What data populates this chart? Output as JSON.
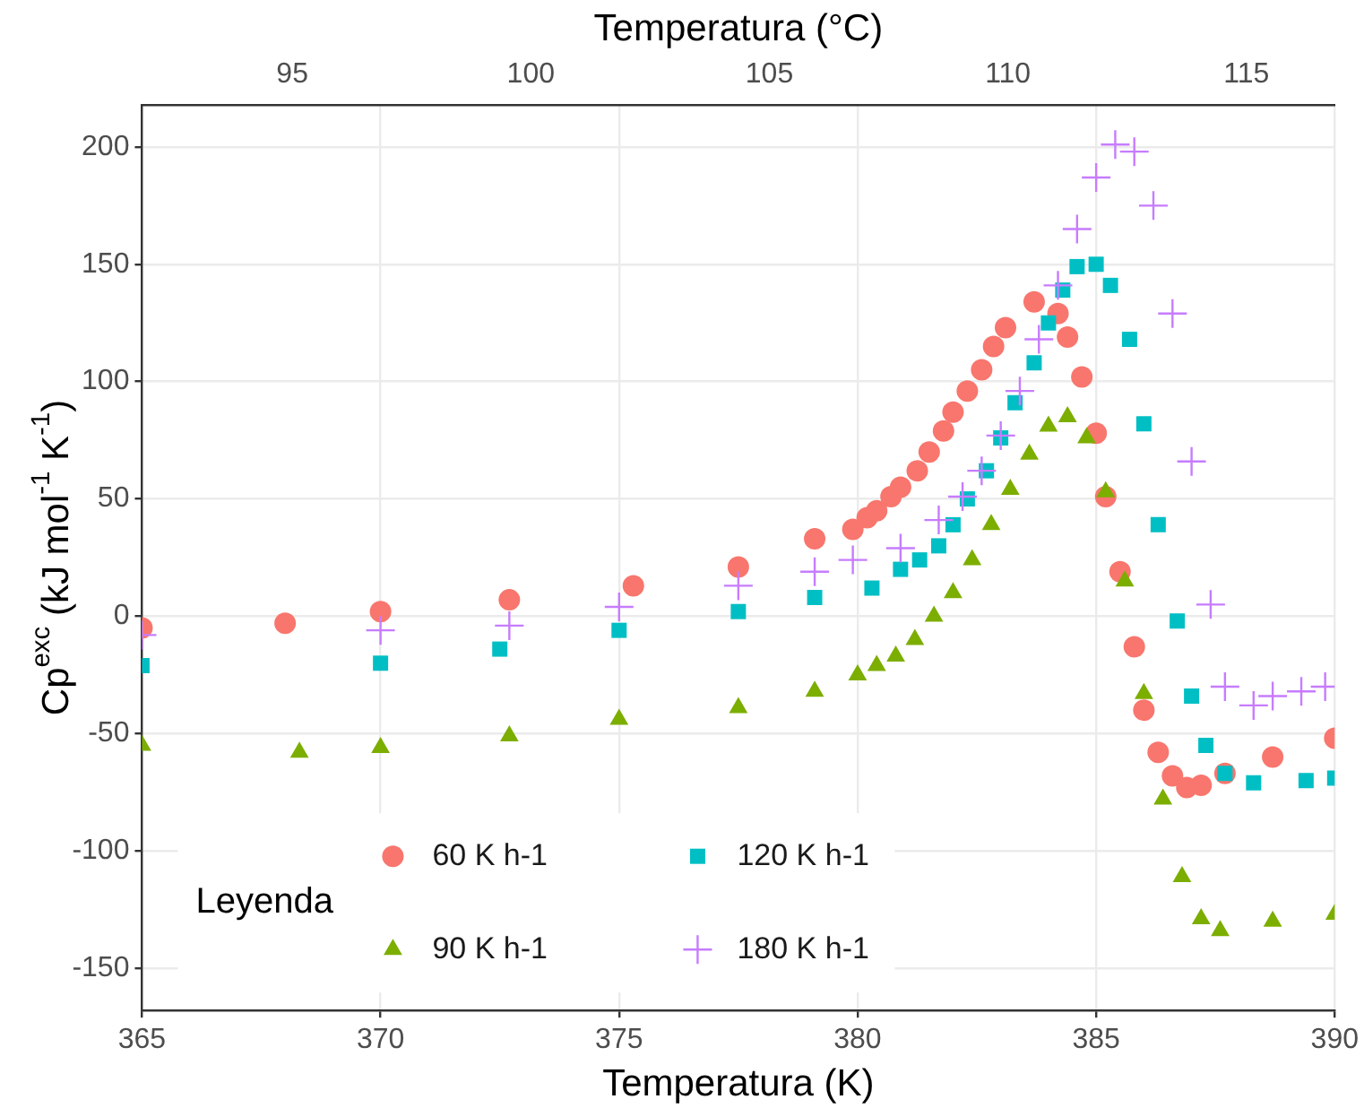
{
  "chart_data": {
    "type": "scatter",
    "xlabel": "Temperatura (K)",
    "x2label": "Temperatura (°C)",
    "ylabel": "Cp$^{exc}$ (kJ mol$^{-1}$ K$^{-1}$)",
    "legend_title": "Leyenda",
    "legend": "bottom left",
    "grid": true,
    "xlim": [
      365,
      390
    ],
    "xticks": [
      365,
      370,
      375,
      380,
      385,
      390
    ],
    "x2lim": [
      91.85,
      116.85
    ],
    "x2ticks": [
      95,
      100,
      105,
      110,
      115
    ],
    "ylim": [
      -168,
      218
    ],
    "yticks": [
      -150,
      -100,
      -50,
      0,
      50,
      100,
      150,
      200
    ],
    "series": [
      {
        "name": "60 K h-1",
        "color": "#f8766d",
        "marker": "circle",
        "x": [
          365,
          368,
          370,
          372.7,
          375.3,
          377.5,
          379.1,
          379.9,
          380.2,
          380.4,
          380.7,
          380.9,
          381.25,
          381.5,
          381.8,
          382,
          382.3,
          382.6,
          382.85,
          383.1,
          383.7,
          384.2,
          384.4,
          384.7,
          385,
          385.2,
          385.5,
          385.8,
          386,
          386.3,
          386.6,
          386.9,
          387.2,
          387.7,
          388.7,
          390
        ],
        "values": [
          -5,
          -3,
          2,
          7,
          13,
          21,
          33,
          37,
          42,
          45,
          51,
          55,
          62,
          70,
          79,
          87,
          96,
          105,
          115,
          123,
          134,
          129,
          119,
          102,
          78,
          51,
          19,
          -13,
          -40,
          -58,
          -68,
          -73,
          -72,
          -67,
          -60,
          -52
        ]
      },
      {
        "name": "90 K h-1",
        "color": "#7cae00",
        "marker": "triangle",
        "x": [
          365,
          368.3,
          370,
          372.7,
          375,
          377.5,
          379.1,
          380,
          380.4,
          380.8,
          381.2,
          381.6,
          382,
          382.4,
          382.8,
          383.2,
          383.6,
          384,
          384.4,
          384.8,
          385.2,
          385.6,
          386,
          386.4,
          386.8,
          387.2,
          387.6,
          388.7,
          390
        ],
        "values": [
          -55,
          -58,
          -56,
          -51,
          -44,
          -39,
          -32,
          -25,
          -21,
          -17,
          -10,
          0,
          10,
          24,
          39,
          54,
          69,
          81,
          85,
          76,
          53,
          15,
          -33,
          -78,
          -111,
          -129,
          -134,
          -130,
          -127
        ]
      },
      {
        "name": "120 K h-1",
        "color": "#00bfc4",
        "marker": "square",
        "x": [
          365,
          370,
          372.5,
          375,
          377.5,
          379.1,
          380.3,
          380.9,
          381.3,
          381.7,
          382,
          382.3,
          382.7,
          383,
          383.3,
          383.7,
          384,
          384.3,
          384.6,
          385,
          385.3,
          385.7,
          386,
          386.3,
          386.7,
          387,
          387.3,
          387.7,
          388.3,
          389.4,
          390
        ],
        "values": [
          -21,
          -20,
          -14,
          -6,
          2,
          8,
          12,
          20,
          24,
          30,
          39,
          50,
          62,
          76,
          91,
          108,
          125,
          139,
          149,
          150,
          141,
          118,
          82,
          39,
          -2,
          -34,
          -55,
          -67,
          -71,
          -70,
          -69
        ]
      },
      {
        "name": "180 K h-1",
        "color": "#c77cff",
        "marker": "cross",
        "x": [
          365,
          370,
          372.7,
          375,
          377.5,
          379.1,
          379.9,
          380.9,
          381.7,
          382.2,
          382.6,
          383,
          383.4,
          383.8,
          384.2,
          384.6,
          385,
          385.4,
          385.8,
          386.2,
          386.6,
          387,
          387.4,
          387.7,
          388.3,
          388.7,
          389.3,
          389.8
        ],
        "values": [
          -8,
          -6,
          -4,
          4,
          13,
          19,
          24,
          29,
          41,
          51,
          62,
          77,
          96,
          118,
          141,
          165,
          187,
          201,
          198,
          175,
          129,
          66,
          5,
          -30,
          -38,
          -34,
          -32,
          -30
        ]
      }
    ]
  }
}
